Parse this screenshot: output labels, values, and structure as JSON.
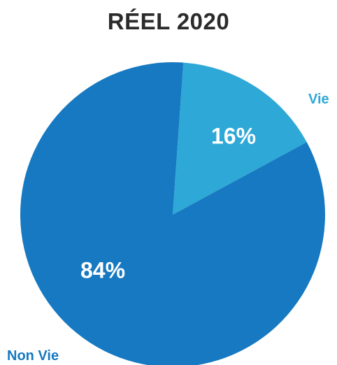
{
  "chart_data": {
    "type": "pie",
    "title": "RÉEL 2020",
    "slices": [
      {
        "label": "Vie",
        "value": 16,
        "value_label": "16%",
        "color": "#2ea8d6"
      },
      {
        "label": "Non Vie",
        "value": 84,
        "value_label": "84%",
        "color": "#1679c1"
      }
    ],
    "legend": "slice labels outside the pie (Vie top-right, Non Vie bottom-left)"
  }
}
